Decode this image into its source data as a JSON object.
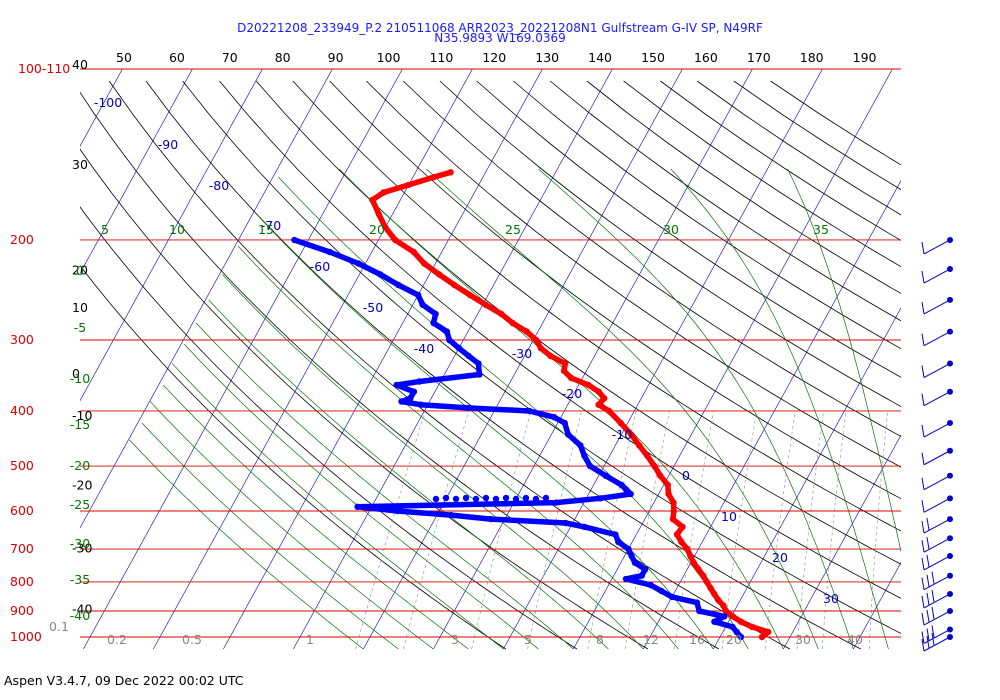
{
  "chart_data": {
    "type": "skew-t log-p sounding",
    "title": "D20221208_233949_P.2 210511068 ARR2023_20221208N1 Gulfstream G-IV SP, N49RF",
    "subtitle": "N35.9893 W169.0369",
    "footer": "Aspen V3.4.7, 09 Dec 2022  00:02 UTC",
    "pressure_axis": {
      "ticks": [
        {
          "p": 1000,
          "label": "1000"
        },
        {
          "p": 900,
          "label": "900"
        },
        {
          "p": 800,
          "label": "800"
        },
        {
          "p": 700,
          "label": "700"
        },
        {
          "p": 600,
          "label": "600"
        },
        {
          "p": 500,
          "label": "500"
        },
        {
          "p": 400,
          "label": "400"
        },
        {
          "p": 300,
          "label": "300"
        },
        {
          "p": 200,
          "label": "200"
        },
        {
          "p": 100,
          "label": "100"
        }
      ],
      "top_label_suffix": "-110",
      "color": "#dd0000"
    },
    "altitude_axis": {
      "ticks": [
        {
          "p": 100,
          "label": "40"
        },
        {
          "p": 150,
          "label": "30"
        },
        {
          "p": 230,
          "label": "20"
        },
        {
          "p": 268,
          "label": "10"
        },
        {
          "p": 350,
          "label": "0"
        },
        {
          "p": 415,
          "label": "-10"
        },
        {
          "p": 550,
          "label": "-20"
        },
        {
          "p": 710,
          "label": "-30"
        },
        {
          "p": 910,
          "label": "-40"
        }
      ]
    },
    "top_scale": [
      50,
      60,
      70,
      80,
      90,
      100,
      110,
      120,
      130,
      140,
      150,
      160,
      170,
      180,
      190
    ],
    "isotherm_labels": [
      {
        "t": -100,
        "label": "-100"
      },
      {
        "t": -90,
        "label": "-90"
      },
      {
        "t": -80,
        "label": "-80"
      },
      {
        "t": -70,
        "label": "-70"
      },
      {
        "t": -60,
        "label": "-60"
      },
      {
        "t": -50,
        "label": "-50"
      },
      {
        "t": -40,
        "label": "-40"
      },
      {
        "t": -30,
        "label": "-30"
      },
      {
        "t": -20,
        "label": "-20"
      },
      {
        "t": -10,
        "label": "-10"
      },
      {
        "t": 0,
        "label": "0"
      },
      {
        "t": 10,
        "label": "10"
      },
      {
        "t": 20,
        "label": "20"
      },
      {
        "t": 30,
        "label": "30"
      }
    ],
    "theta_e_labels": [
      "5",
      "10",
      "15",
      "20",
      "25",
      "30",
      "35"
    ],
    "moist_left_labels": [
      "0",
      "-5",
      "-10",
      "-15",
      "-20",
      "-25",
      "-30",
      "-35",
      "-40"
    ],
    "mixing_ratio_labels": [
      "0.1",
      "0.2",
      "0.5",
      "1",
      "3",
      "5",
      "8",
      "12",
      "16",
      "20",
      "30",
      "40"
    ],
    "colors": {
      "isobar": "#dd0000",
      "isotherm": "#0000bb",
      "dry_adiabat": "#000000",
      "moist_adiabat": "#007700",
      "mixing_ratio": "#888888",
      "temperature": "#ff0000",
      "dewpoint": "#0000ff",
      "wind_barb": "#0000cc"
    },
    "series": [
      {
        "name": "Temperature",
        "points": [
          [
            1000,
            16.0
          ],
          [
            980,
            16.5
          ],
          [
            960,
            13.8
          ],
          [
            940,
            11.8
          ],
          [
            920,
            10.2
          ],
          [
            900,
            8.8
          ],
          [
            880,
            8.0
          ],
          [
            860,
            6.8
          ],
          [
            840,
            5.8
          ],
          [
            820,
            4.8
          ],
          [
            800,
            3.8
          ],
          [
            780,
            2.8
          ],
          [
            760,
            1.6
          ],
          [
            740,
            0.4
          ],
          [
            720,
            -0.6
          ],
          [
            700,
            -1.6
          ],
          [
            680,
            -3.0
          ],
          [
            660,
            -4.2
          ],
          [
            640,
            -4.0
          ],
          [
            620,
            -6.0
          ],
          [
            600,
            -6.5
          ],
          [
            580,
            -7.2
          ],
          [
            560,
            -8.6
          ],
          [
            540,
            -9.4
          ],
          [
            520,
            -11.2
          ],
          [
            500,
            -12.8
          ],
          [
            480,
            -14.6
          ],
          [
            460,
            -16.6
          ],
          [
            440,
            -18.6
          ],
          [
            420,
            -21.0
          ],
          [
            400,
            -23.6
          ],
          [
            390,
            -25.6
          ],
          [
            380,
            -25.3
          ],
          [
            370,
            -26.6
          ],
          [
            360,
            -28.6
          ],
          [
            350,
            -31.6
          ],
          [
            340,
            -33.2
          ],
          [
            330,
            -33.6
          ],
          [
            320,
            -36.3
          ],
          [
            310,
            -38.3
          ],
          [
            300,
            -39.6
          ],
          [
            290,
            -41.6
          ],
          [
            280,
            -44.3
          ],
          [
            270,
            -46.6
          ],
          [
            260,
            -49.6
          ],
          [
            250,
            -52.6
          ],
          [
            240,
            -55.6
          ],
          [
            230,
            -58.6
          ],
          [
            220,
            -61.6
          ],
          [
            210,
            -64.0
          ],
          [
            200,
            -67.6
          ],
          [
            190,
            -70.0
          ],
          [
            180,
            -72.0
          ],
          [
            170,
            -74.0
          ],
          [
            165,
            -73.0
          ],
          [
            160,
            -70.0
          ],
          [
            155,
            -67.0
          ],
          [
            152,
            -65.0
          ]
        ]
      },
      {
        "name": "Dewpoint",
        "points": [
          [
            1000,
            13.0
          ],
          [
            980,
            12.0
          ],
          [
            960,
            11.0
          ],
          [
            940,
            8.0
          ],
          [
            920,
            9.0
          ],
          [
            900,
            5.0
          ],
          [
            870,
            4.0
          ],
          [
            850,
            0.0
          ],
          [
            830,
            -2.0
          ],
          [
            810,
            -4.0
          ],
          [
            790,
            -8.0
          ],
          [
            780,
            -6.0
          ],
          [
            760,
            -6.0
          ],
          [
            740,
            -8.0
          ],
          [
            720,
            -9.0
          ],
          [
            700,
            -10.0
          ],
          [
            680,
            -12.0
          ],
          [
            660,
            -13.0
          ],
          [
            640,
            -18.0
          ],
          [
            630,
            -21.0
          ],
          [
            620,
            -32.0
          ],
          [
            610,
            -38.0
          ],
          [
            600,
            -46.0
          ],
          [
            590,
            -52.0
          ],
          [
            580,
            -24.0
          ],
          [
            570,
            -18.0
          ],
          [
            560,
            -14.0
          ],
          [
            550,
            -15.0
          ],
          [
            540,
            -16.0
          ],
          [
            520,
            -19.0
          ],
          [
            500,
            -22.0
          ],
          [
            480,
            -23.6
          ],
          [
            460,
            -25.0
          ],
          [
            440,
            -27.6
          ],
          [
            420,
            -29.0
          ],
          [
            410,
            -31.0
          ],
          [
            400,
            -35.0
          ],
          [
            395,
            -44.0
          ],
          [
            390,
            -51.0
          ],
          [
            385,
            -54.0
          ],
          [
            380,
            -53.0
          ],
          [
            370,
            -53.0
          ],
          [
            360,
            -56.0
          ],
          [
            355,
            -53.0
          ],
          [
            345,
            -45.0
          ],
          [
            330,
            -46.0
          ],
          [
            320,
            -48.0
          ],
          [
            310,
            -50.0
          ],
          [
            300,
            -52.0
          ],
          [
            290,
            -53.0
          ],
          [
            280,
            -55.6
          ],
          [
            270,
            -56.0
          ],
          [
            260,
            -58.6
          ],
          [
            250,
            -60.0
          ],
          [
            240,
            -63.6
          ],
          [
            230,
            -67.0
          ],
          [
            220,
            -71.0
          ],
          [
            210,
            -76.0
          ],
          [
            200,
            -82.0
          ]
        ]
      }
    ],
    "wind_barbs_p": [
      1000,
      970,
      900,
      840,
      780,
      720,
      670,
      620,
      570,
      520,
      470,
      420,
      370,
      330,
      290,
      255,
      225,
      200
    ]
  }
}
